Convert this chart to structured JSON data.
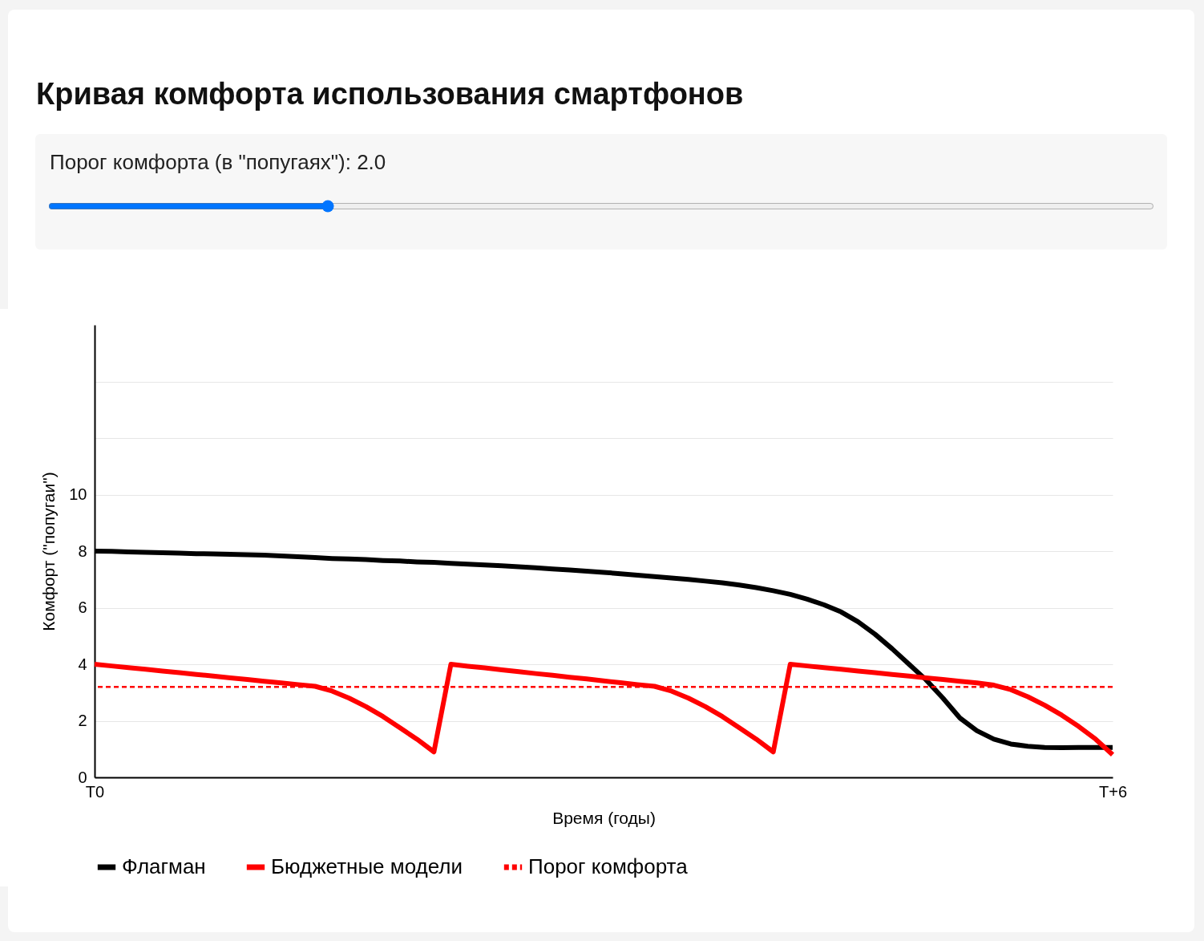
{
  "chart_data": {
    "type": "line",
    "title": "Кривая комфорта использования смартфонов",
    "annotations": [
      "Порог комфорта (в \"попугаях\"): 2.0"
    ],
    "xlabel": "Время (годы)",
    "ylabel": "Комфорт (\"попугаи\")",
    "categories": [
      "T0",
      null,
      null,
      null,
      null,
      null,
      null,
      null,
      null,
      null,
      null,
      null,
      null,
      null,
      null,
      null,
      null,
      null,
      null,
      null,
      null,
      null,
      null,
      null,
      null,
      null,
      null,
      null,
      null,
      null,
      null,
      null,
      null,
      null,
      null,
      null,
      null,
      null,
      null,
      null,
      null,
      null,
      null,
      null,
      null,
      null,
      null,
      null,
      null,
      null,
      null,
      null,
      null,
      null,
      null,
      null,
      null,
      null,
      null,
      null,
      "T+6"
    ],
    "ylim": [
      0,
      16
    ],
    "yticks": [
      0,
      2,
      4,
      6,
      8,
      10,
      {
        "value": 12,
        "label": null
      },
      {
        "value": 14,
        "label": null
      }
    ],
    "grid": "y",
    "legend": "bottom",
    "series": [
      {
        "name": "Флагман",
        "color": "#000000",
        "values": [
          8.0,
          7.99,
          7.97,
          7.96,
          7.94,
          7.93,
          7.91,
          7.9,
          7.89,
          7.87,
          7.86,
          7.83,
          7.8,
          7.77,
          7.74,
          7.72,
          7.7,
          7.67,
          7.65,
          7.62,
          7.6,
          7.57,
          7.54,
          7.51,
          7.48,
          7.45,
          7.41,
          7.37,
          7.33,
          7.29,
          7.25,
          7.2,
          7.15,
          7.1,
          7.05,
          7.0,
          6.94,
          6.88,
          6.8,
          6.71,
          6.6,
          6.47,
          6.3,
          6.1,
          5.85,
          5.5,
          5.06,
          4.55,
          4.0,
          3.45,
          2.8,
          2.1,
          1.65,
          1.35,
          1.18,
          1.1,
          1.06,
          1.05,
          1.06,
          1.06,
          1.06
        ]
      },
      {
        "name": "Бюджетные модели",
        "color": "#ff0000",
        "values": [
          4.0,
          3.94,
          3.88,
          3.82,
          3.76,
          3.7,
          3.64,
          3.58,
          3.52,
          3.46,
          3.4,
          3.34,
          3.28,
          3.22,
          3.05,
          2.8,
          2.5,
          2.15,
          1.75,
          1.35,
          0.9,
          4.0,
          3.93,
          3.87,
          3.8,
          3.74,
          3.67,
          3.61,
          3.54,
          3.48,
          3.41,
          3.35,
          3.28,
          3.22,
          3.05,
          2.8,
          2.5,
          2.15,
          1.75,
          1.35,
          0.9,
          4.0,
          3.94,
          3.88,
          3.82,
          3.76,
          3.7,
          3.64,
          3.58,
          3.52,
          3.46,
          3.4,
          3.34,
          3.26,
          3.1,
          2.85,
          2.55,
          2.2,
          1.8,
          1.35,
          0.8
        ]
      }
    ],
    "ref_lines": [
      {
        "axis": "y",
        "value": 3.2,
        "label": "Порог комфорта",
        "color": "#ff0000",
        "line_style": "dashed"
      }
    ]
  }
}
